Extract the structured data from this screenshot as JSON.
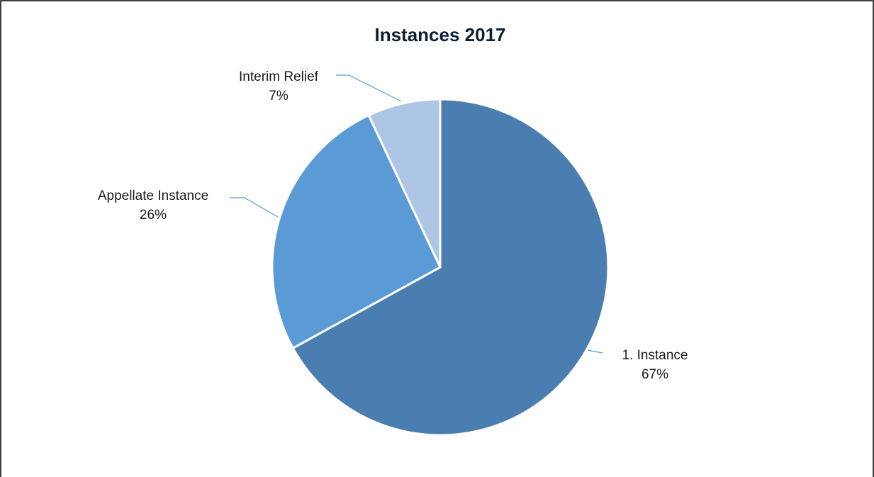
{
  "chart_data": {
    "type": "pie",
    "title": "Instances 2017",
    "slices": [
      {
        "label": "1. Instance",
        "value": 67,
        "percent_label": "67%",
        "color": "#4a7eb0"
      },
      {
        "label": "Appellate Instance",
        "value": 26,
        "percent_label": "26%",
        "color": "#5b9bd5"
      },
      {
        "label": "Interim Relief",
        "value": 7,
        "percent_label": "7%",
        "color": "#aec6e6"
      }
    ],
    "start_angle_deg": 0,
    "direction": "clockwise",
    "data_labels": "outside-with-leader-lines",
    "leader_color": "#5b9bd5"
  }
}
